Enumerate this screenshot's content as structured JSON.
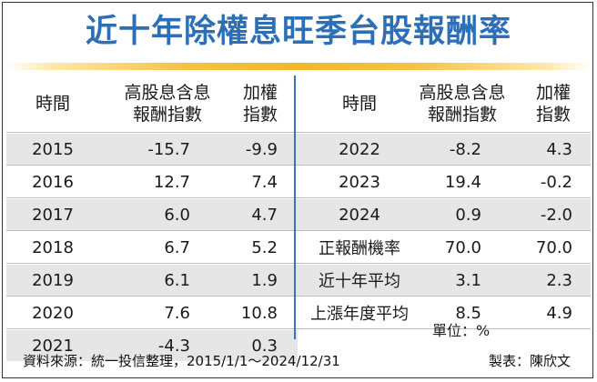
{
  "title": "近十年除權息旺季台股報酬率",
  "left_header": {
    "time": "時間",
    "high_div_l1": "高股息含息",
    "high_div_l2": "報酬指數",
    "taiex_l1": "加權",
    "taiex_l2": "指數"
  },
  "right_header": {
    "time": "時間",
    "high_div_l1": "高股息含息",
    "high_div_l2": "報酬指數",
    "taiex_l1": "加權",
    "taiex_l2": "指數"
  },
  "left_rows": [
    {
      "year": "2015",
      "high_div": "-15.7",
      "taiex": "-9.9"
    },
    {
      "year": "2016",
      "high_div": "12.7",
      "taiex": "7.4"
    },
    {
      "year": "2017",
      "high_div": "6.0",
      "taiex": "4.7"
    },
    {
      "year": "2018",
      "high_div": "6.7",
      "taiex": "5.2"
    },
    {
      "year": "2019",
      "high_div": "6.1",
      "taiex": "1.9"
    },
    {
      "year": "2020",
      "high_div": "7.6",
      "taiex": "10.8"
    },
    {
      "year": "2021",
      "high_div": "-4.3",
      "taiex": "0.3"
    }
  ],
  "right_rows": [
    {
      "label": "2022",
      "high_div": "-8.2",
      "taiex": "4.3"
    },
    {
      "label": "2023",
      "high_div": "19.4",
      "taiex": "-0.2"
    },
    {
      "label": "2024",
      "high_div": "0.9",
      "taiex": "-2.0"
    },
    {
      "label": "正報酬機率",
      "high_div": "70.0",
      "taiex": "70.0"
    },
    {
      "label": "近十年平均",
      "high_div": "3.1",
      "taiex": "2.3"
    },
    {
      "label": "上漲年度平均",
      "high_div": "8.5",
      "taiex": "4.9"
    }
  ],
  "unit": "單位：%",
  "source": "資料來源：統一投信整理，2015/1/1～2024/12/31",
  "credit": "製表：陳欣文"
}
